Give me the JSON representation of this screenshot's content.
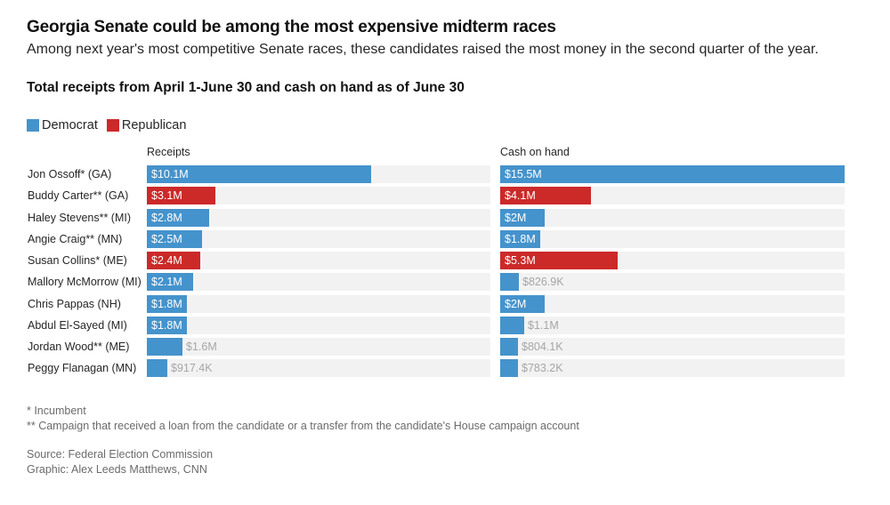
{
  "title": "Georgia Senate could be among the most expensive midterm races",
  "subtitle": "Among next year's most competitive Senate races, these candidates raised the most money in the second quarter of the year.",
  "heading": "Total receipts from April 1-June 30 and cash on hand as of June 30",
  "legend": [
    {
      "label": "Democrat",
      "color": "#4593cc"
    },
    {
      "label": "Republican",
      "color": "#cc2929"
    }
  ],
  "colors": {
    "Democrat": "#4593cc",
    "Republican": "#cc2929",
    "track": "#f2f2f2"
  },
  "chart_data": {
    "type": "bar",
    "orientation": "horizontal",
    "categories": [
      "Jon Ossoff* (GA)",
      "Buddy Carter** (GA)",
      "Haley Stevens** (MI)",
      "Angie Craig** (MN)",
      "Susan Collins* (ME)",
      "Mallory McMorrow (MI)",
      "Chris Pappas (NH)",
      "Abdul El-Sayed (MI)",
      "Jordan Wood** (ME)",
      "Peggy Flanagan (MN)"
    ],
    "party": [
      "Democrat",
      "Republican",
      "Democrat",
      "Democrat",
      "Republican",
      "Democrat",
      "Democrat",
      "Democrat",
      "Democrat",
      "Democrat"
    ],
    "unit": "USD millions",
    "series": [
      {
        "name": "Receipts",
        "values": [
          10.1,
          3.1,
          2.8,
          2.5,
          2.4,
          2.1,
          1.8,
          1.8,
          1.6,
          0.9174
        ],
        "labels": [
          "$10.1M",
          "$3.1M",
          "$2.8M",
          "$2.5M",
          "$2.4M",
          "$2.1M",
          "$1.8M",
          "$1.8M",
          "$1.6M",
          "$917.4K"
        ],
        "xlim": [
          0,
          15.5
        ]
      },
      {
        "name": "Cash on hand",
        "values": [
          15.5,
          4.1,
          2.0,
          1.8,
          5.3,
          0.8269,
          2.0,
          1.1,
          0.8041,
          0.7832
        ],
        "labels": [
          "$15.5M",
          "$4.1M",
          "$2M",
          "$1.8M",
          "$5.3M",
          "$826.9K",
          "$2M",
          "$1.1M",
          "$804.1K",
          "$783.2K"
        ],
        "xlim": [
          0,
          15.5
        ]
      }
    ]
  },
  "notes": {
    "incumbent": "* Incumbent",
    "loan": "** Campaign that received a loan from the candidate or a transfer from the candidate's House campaign account",
    "source": "Source: Federal Election Commission",
    "graphic": "Graphic: Alex Leeds Matthews, CNN"
  }
}
